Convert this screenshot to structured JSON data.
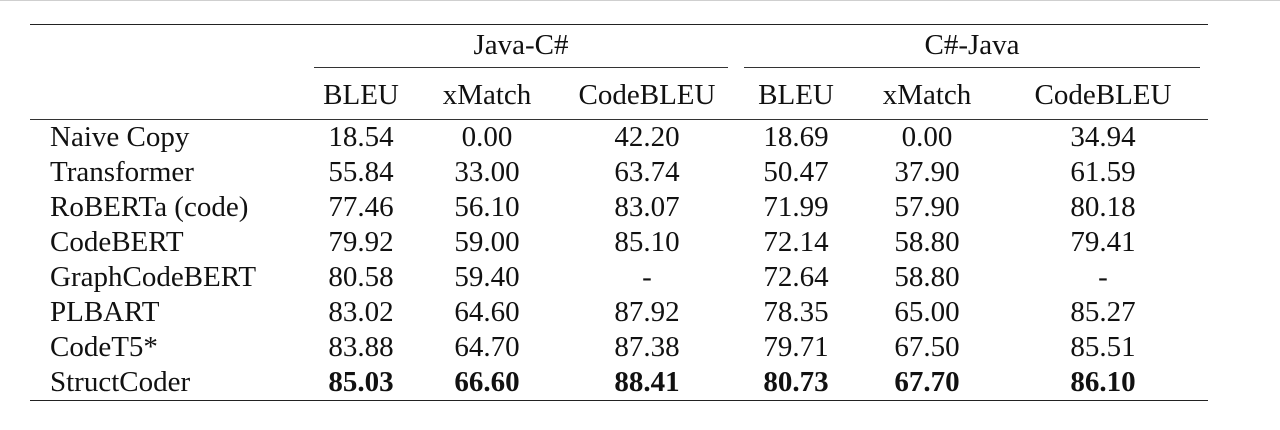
{
  "table": {
    "groups": [
      "Java-C#",
      "C#-Java"
    ],
    "metrics": [
      "BLEU",
      "xMatch",
      "CodeBLEU",
      "BLEU",
      "xMatch",
      "CodeBLEU"
    ],
    "rows": [
      {
        "model": "Naive Copy",
        "values": [
          "18.54",
          "0.00",
          "42.20",
          "18.69",
          "0.00",
          "34.94"
        ]
      },
      {
        "model": "Transformer",
        "values": [
          "55.84",
          "33.00",
          "63.74",
          "50.47",
          "37.90",
          "61.59"
        ]
      },
      {
        "model": "RoBERTa (code)",
        "values": [
          "77.46",
          "56.10",
          "83.07",
          "71.99",
          "57.90",
          "80.18"
        ]
      },
      {
        "model": "CodeBERT",
        "values": [
          "79.92",
          "59.00",
          "85.10",
          "72.14",
          "58.80",
          "79.41"
        ]
      },
      {
        "model": "GraphCodeBERT",
        "values": [
          "80.58",
          "59.40",
          "-",
          "72.64",
          "58.80",
          "-"
        ]
      },
      {
        "model": "PLBART",
        "values": [
          "83.02",
          "64.60",
          "87.92",
          "78.35",
          "65.00",
          "85.27"
        ]
      },
      {
        "model": "CodeT5*",
        "values": [
          "83.88",
          "64.70",
          "87.38",
          "79.71",
          "67.50",
          "85.51"
        ]
      },
      {
        "model": "StructCoder",
        "values": [
          "85.03",
          "66.60",
          "88.41",
          "80.73",
          "67.70",
          "86.10"
        ]
      }
    ]
  }
}
